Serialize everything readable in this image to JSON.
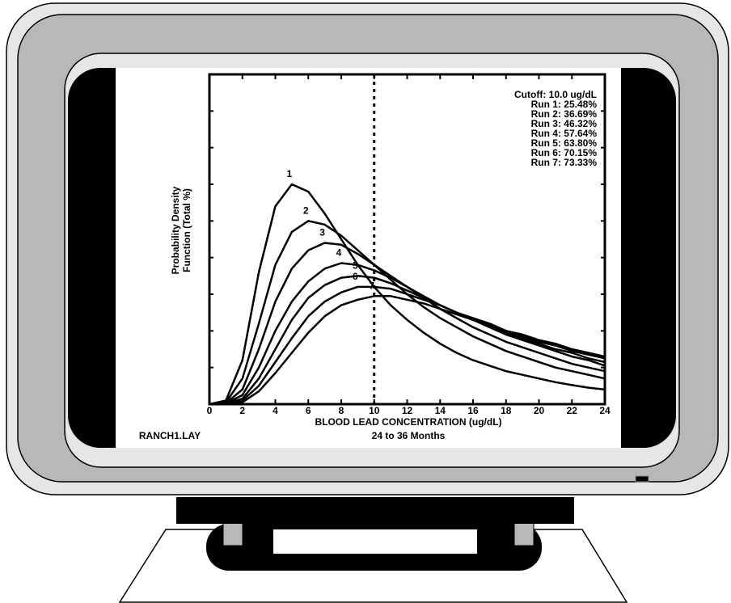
{
  "chart_data": {
    "type": "line",
    "ylabel_lines": [
      "Probability Density",
      "Function (Total %)"
    ],
    "xlabel": "BLOOD LEAD CONCENTRATION (ug/dL)",
    "subtitle": "24 to 36 Months",
    "file_label": "RANCH1.LAY",
    "annotations": [
      "Cutoff: 10.0 ug/dL",
      "Run 1: 25.48%",
      "Run 2: 36.69%",
      "Run 3: 46.32%",
      "Run 4: 57.64%",
      "Run 5: 63.80%",
      "Run 6: 70.15%",
      "Run 7: 73.33%"
    ],
    "cutoff": 10,
    "x": [
      0,
      1,
      2,
      3,
      4,
      5,
      6,
      7,
      8,
      9,
      10,
      11,
      12,
      13,
      14,
      15,
      16,
      17,
      18,
      19,
      20,
      21,
      22,
      23,
      24
    ],
    "xlim": [
      0,
      24
    ],
    "xticks": [
      0,
      2,
      4,
      6,
      8,
      10,
      12,
      14,
      16,
      18,
      20,
      22,
      24
    ],
    "ylim": [
      0,
      9
    ],
    "yticks": [
      0,
      1,
      2,
      3,
      4,
      5,
      6,
      7,
      8,
      9
    ],
    "color": "#000000",
    "series": [
      {
        "name": "1",
        "values": [
          0,
          0.1,
          1.2,
          3.6,
          5.4,
          6.0,
          5.8,
          5.2,
          4.5,
          3.8,
          3.2,
          2.7,
          2.3,
          1.95,
          1.65,
          1.4,
          1.2,
          1.05,
          0.9,
          0.8,
          0.7,
          0.6,
          0.52,
          0.45,
          0.4
        ]
      },
      {
        "name": "2",
        "values": [
          0,
          0.05,
          0.7,
          2.2,
          3.8,
          4.7,
          5.0,
          4.9,
          4.6,
          4.2,
          3.8,
          3.4,
          3.0,
          2.65,
          2.35,
          2.1,
          1.85,
          1.65,
          1.45,
          1.3,
          1.15,
          1.0,
          0.9,
          0.8,
          0.7
        ]
      },
      {
        "name": "3",
        "values": [
          0,
          0.03,
          0.4,
          1.5,
          2.8,
          3.7,
          4.2,
          4.4,
          4.35,
          4.1,
          3.8,
          3.5,
          3.2,
          2.9,
          2.6,
          2.35,
          2.1,
          1.9,
          1.7,
          1.55,
          1.4,
          1.25,
          1.1,
          1.0,
          0.9
        ]
      },
      {
        "name": "4",
        "values": [
          0,
          0.02,
          0.25,
          1.0,
          2.0,
          2.8,
          3.35,
          3.7,
          3.85,
          3.8,
          3.65,
          3.45,
          3.2,
          2.95,
          2.7,
          2.5,
          2.3,
          2.1,
          1.9,
          1.75,
          1.6,
          1.45,
          1.3,
          1.2,
          1.05
        ]
      },
      {
        "name": "5",
        "values": [
          0,
          0.01,
          0.15,
          0.7,
          1.5,
          2.3,
          2.9,
          3.25,
          3.45,
          3.5,
          3.45,
          3.3,
          3.1,
          2.9,
          2.7,
          2.5,
          2.3,
          2.15,
          1.95,
          1.8,
          1.65,
          1.5,
          1.4,
          1.25,
          1.15
        ]
      },
      {
        "name": "6",
        "values": [
          0,
          0,
          0.1,
          0.5,
          1.15,
          1.8,
          2.4,
          2.8,
          3.05,
          3.2,
          3.2,
          3.15,
          3.0,
          2.85,
          2.7,
          2.5,
          2.35,
          2.2,
          2.0,
          1.85,
          1.7,
          1.6,
          1.45,
          1.35,
          1.25
        ]
      },
      {
        "name": "7",
        "values": [
          0,
          0,
          0.05,
          0.35,
          0.85,
          1.4,
          1.95,
          2.4,
          2.7,
          2.85,
          2.95,
          2.95,
          2.85,
          2.75,
          2.6,
          2.45,
          2.3,
          2.15,
          2.0,
          1.9,
          1.75,
          1.65,
          1.5,
          1.4,
          1.3
        ]
      }
    ]
  }
}
